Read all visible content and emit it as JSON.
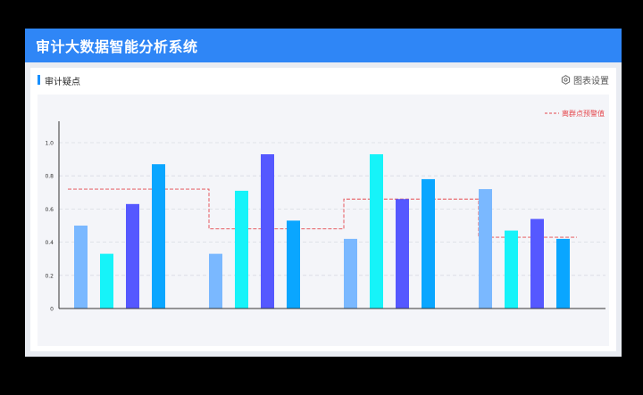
{
  "app": {
    "title": "审计大数据智能分析系统"
  },
  "panel": {
    "title": "审计疑点",
    "settings_label": "图表设置",
    "settings_icon": "gear-icon"
  },
  "chart_data": {
    "type": "bar",
    "categories": [
      "",
      "",
      "",
      ""
    ],
    "series": [
      {
        "name": "",
        "color": "#7ab8ff",
        "values": [
          0.5,
          0.33,
          0.42,
          0.72
        ]
      },
      {
        "name": "",
        "color": "#16f3f9",
        "values": [
          0.33,
          0.71,
          0.93,
          0.47
        ]
      },
      {
        "name": "",
        "color": "#5558ff",
        "values": [
          0.63,
          0.93,
          0.66,
          0.54
        ]
      },
      {
        "name": "",
        "color": "#0aa6ff",
        "values": [
          0.87,
          0.53,
          0.78,
          0.42
        ]
      }
    ],
    "threshold": {
      "label": "离群点预警值",
      "color": "#e5484d",
      "values": [
        0.72,
        0.48,
        0.66,
        0.43
      ]
    },
    "yticks": [
      "0",
      "0.2",
      "0.4",
      "0.6",
      "0.8",
      "1.0"
    ],
    "ylim": [
      0,
      1.0
    ],
    "grid": true,
    "legend_position": "top-right"
  }
}
